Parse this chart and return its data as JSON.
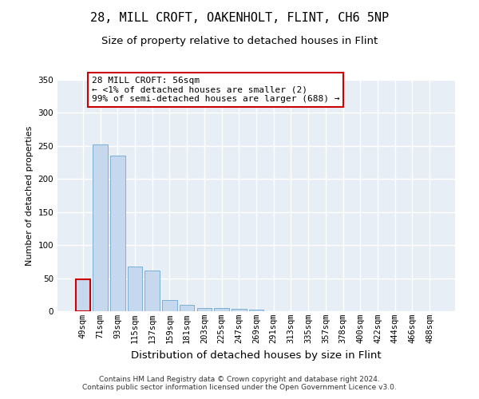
{
  "title1": "28, MILL CROFT, OAKENHOLT, FLINT, CH6 5NP",
  "title2": "Size of property relative to detached houses in Flint",
  "xlabel": "Distribution of detached houses by size in Flint",
  "ylabel": "Number of detached properties",
  "categories": [
    "49sqm",
    "71sqm",
    "93sqm",
    "115sqm",
    "137sqm",
    "159sqm",
    "181sqm",
    "203sqm",
    "225sqm",
    "247sqm",
    "269sqm",
    "291sqm",
    "313sqm",
    "335sqm",
    "357sqm",
    "378sqm",
    "400sqm",
    "422sqm",
    "444sqm",
    "466sqm",
    "488sqm"
  ],
  "values": [
    48,
    252,
    235,
    68,
    62,
    17,
    10,
    5,
    5,
    4,
    3,
    0,
    0,
    0,
    0,
    0,
    0,
    0,
    0,
    0,
    0
  ],
  "bar_color": "#c5d8ed",
  "bar_edge_color": "#7aafd4",
  "highlight_bar_edge_color": "#cc0000",
  "highlight_index": 0,
  "annotation_text": "28 MILL CROFT: 56sqm\n← <1% of detached houses are smaller (2)\n99% of semi-detached houses are larger (688) →",
  "annotation_box_color": "white",
  "annotation_box_edge_color": "#cc0000",
  "ylim": [
    0,
    350
  ],
  "yticks": [
    0,
    50,
    100,
    150,
    200,
    250,
    300,
    350
  ],
  "bg_color": "#e8eef5",
  "grid_color": "white",
  "footer": "Contains HM Land Registry data © Crown copyright and database right 2024.\nContains public sector information licensed under the Open Government Licence v3.0.",
  "title1_fontsize": 11,
  "title2_fontsize": 9.5,
  "xlabel_fontsize": 9.5,
  "ylabel_fontsize": 8,
  "tick_fontsize": 7.5,
  "annotation_fontsize": 8,
  "footer_fontsize": 6.5
}
